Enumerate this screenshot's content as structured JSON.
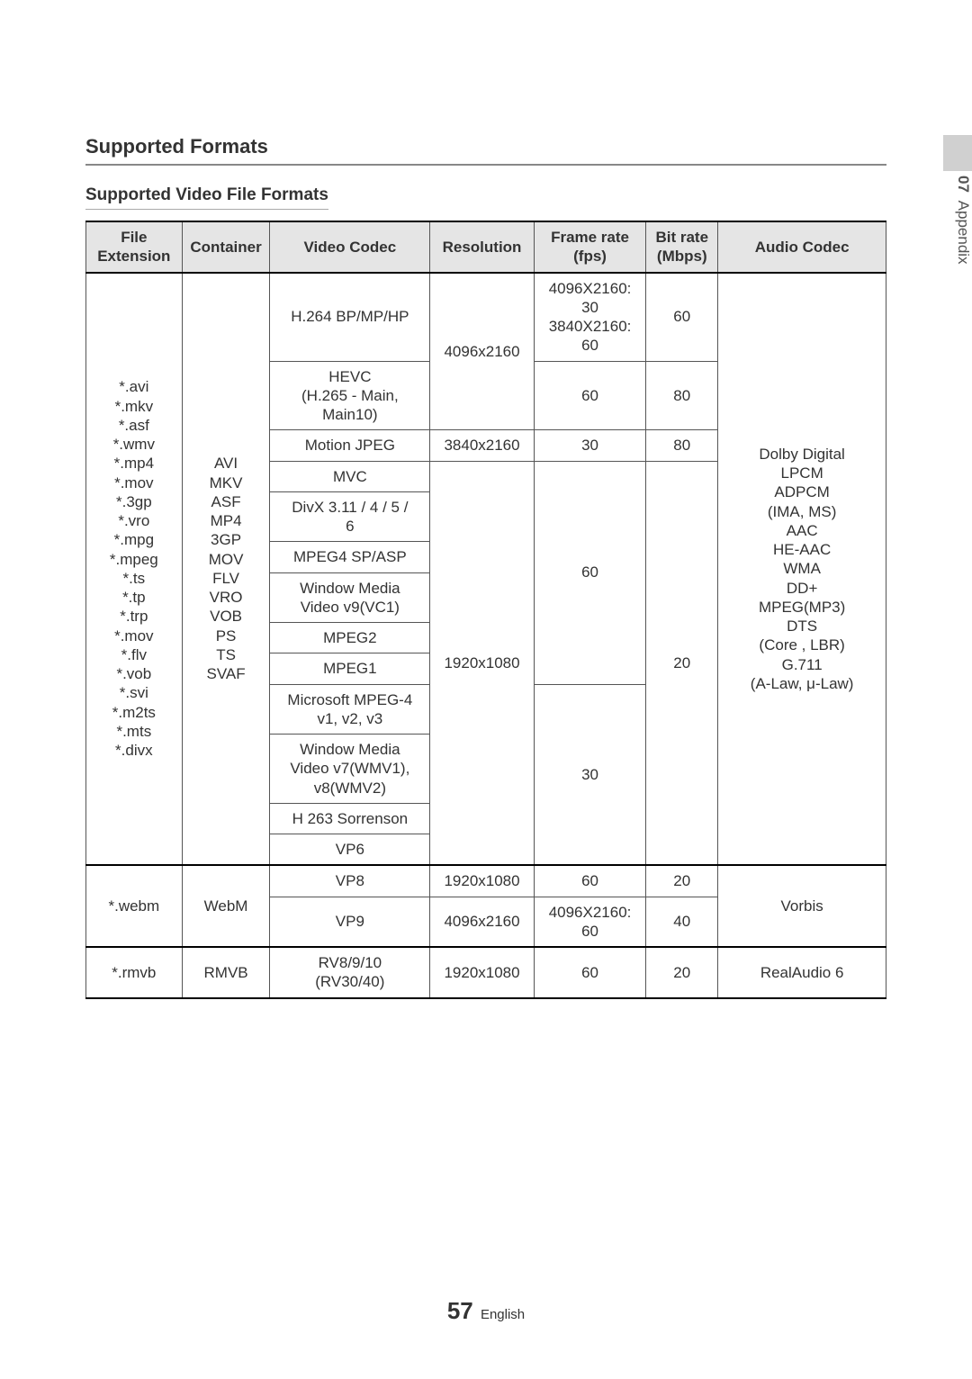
{
  "sideTab": {
    "number": "07",
    "label": "Appendix"
  },
  "headings": {
    "h1": "Supported Formats",
    "h2": "Supported Video File Formats"
  },
  "columns": [
    "File\nExtension",
    "Container",
    "Video Codec",
    "Resolution",
    "Frame rate\n(fps)",
    "Bit rate\n(Mbps)",
    "Audio Codec"
  ],
  "block1": {
    "ext": "*.avi\n*.mkv\n*.asf\n*.wmv\n*.mp4\n*.mov\n*.3gp\n*.vro\n*.mpg\n*.mpeg\n*.ts\n*.tp\n*.trp\n*.mov\n*.flv\n*.vob\n*.svi\n*.m2ts\n*.mts\n*.divx",
    "container": "AVI\nMKV\nASF\nMP4\n3GP\nMOV\nFLV\nVRO\nVOB\nPS\nTS\nSVAF",
    "audio": "Dolby Digital\nLPCM\nADPCM\n(IMA, MS)\nAAC\nHE-AAC\nWMA\nDD+\nMPEG(MP3)\nDTS\n(Core , LBR)\nG.711\n(A-Law, μ-Law)",
    "rows": {
      "r1": {
        "vc": "H.264 BP/MP/HP",
        "res": "4096x2160",
        "fps": "4096X2160:\n30\n3840X2160:\n60",
        "br": "60"
      },
      "r2": {
        "vc": "HEVC\n(H.265 - Main,\nMain10)",
        "fps": "60",
        "br": "80"
      },
      "r3": {
        "vc": "Motion JPEG",
        "res": "3840x2160",
        "fps": "30",
        "br": "80"
      },
      "r4": {
        "vc": "MVC",
        "res": "1920x1080",
        "br": "20"
      },
      "r5": {
        "vc": "DivX 3.11 / 4 / 5 /\n6"
      },
      "fps60": "60",
      "r6": {
        "vc": "MPEG4 SP/ASP"
      },
      "r7": {
        "vc": "Window Media\nVideo v9(VC1)"
      },
      "r8": {
        "vc": "MPEG2"
      },
      "r9": {
        "vc": "MPEG1"
      },
      "r10": {
        "vc": "Microsoft MPEG-4\nv1, v2, v3"
      },
      "fps30": "30",
      "r11": {
        "vc": "Window Media\nVideo v7(WMV1),\nv8(WMV2)"
      },
      "r12": {
        "vc": "H 263 Sorrenson"
      },
      "r13": {
        "vc": "VP6"
      }
    }
  },
  "block2": {
    "ext": "*.webm",
    "container": "WebM",
    "audio": "Vorbis",
    "r1": {
      "vc": "VP8",
      "res": "1920x1080",
      "fps": "60",
      "br": "20"
    },
    "r2": {
      "vc": "VP9",
      "res": "4096x2160",
      "fps": "4096X2160:\n60",
      "br": "40"
    }
  },
  "block3": {
    "ext": "*.rmvb",
    "container": "RMVB",
    "vc": "RV8/9/10\n(RV30/40)",
    "res": "1920x1080",
    "fps": "60",
    "br": "20",
    "audio": "RealAudio 6"
  },
  "footer": {
    "page": "57",
    "lang": "English"
  },
  "style": {
    "header_bg": "#e5e5e5",
    "border_color": "#555555",
    "thick_border_color": "#000000",
    "font_size_pt": 13
  }
}
